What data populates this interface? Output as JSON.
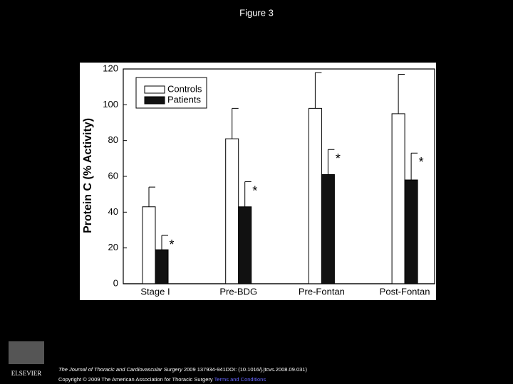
{
  "figure_title": "Figure 3",
  "chart_data": {
    "type": "bar",
    "y_label": "Protein C (% Activity)",
    "categories": [
      "Stage I",
      "Pre-BDG",
      "Pre-Fontan",
      "Post-Fontan"
    ],
    "series": [
      {
        "name": "Controls",
        "color": "#ffffff",
        "values": [
          43,
          81,
          98,
          95
        ],
        "errors": [
          11,
          17,
          20,
          22
        ]
      },
      {
        "name": "Patients",
        "color": "#111111",
        "values": [
          19,
          43,
          61,
          58
        ],
        "errors": [
          8,
          14,
          14,
          15
        ],
        "significance_marks": [
          "*",
          "*",
          "*",
          "*"
        ]
      }
    ],
    "ylim": [
      0,
      120
    ],
    "yticks": [
      0,
      20,
      40,
      60,
      80,
      100,
      120
    ],
    "legend": "upper-left"
  },
  "footer": {
    "journal": "The Journal of Thoracic and Cardiovascular Surgery",
    "citation": "2009 137934-941DOI: (10.1016/j.jtcvs.2008.09.031)",
    "copyright": "Copyright © 2009 The American Association for Thoracic Surgery",
    "link": "Terms and Conditions"
  },
  "logo": "ELSEVIER"
}
